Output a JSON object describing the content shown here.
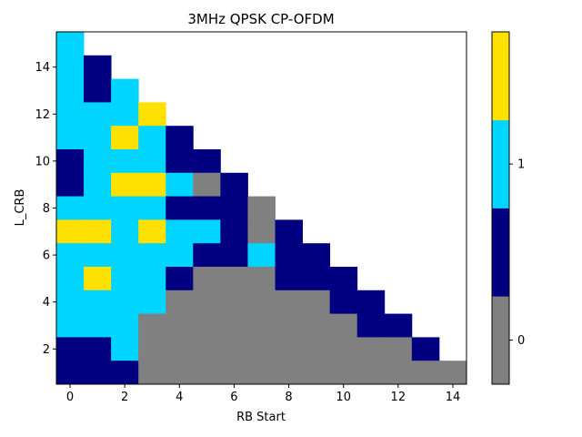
{
  "chart_data": {
    "type": "heatmap",
    "title": "3MHz QPSK CP-OFDM",
    "xlabel": "RB Start",
    "ylabel": "L_CRB",
    "x_ticks": [
      0,
      2,
      4,
      6,
      8,
      10,
      12,
      14
    ],
    "y_ticks": [
      2,
      4,
      6,
      8,
      10,
      12,
      14
    ],
    "x_range": [
      0,
      14
    ],
    "y_range": [
      1,
      15
    ],
    "colorbar": {
      "ticks": [
        {
          "value": 0,
          "label": "0"
        },
        {
          "value": 1,
          "label": "1"
        }
      ],
      "levels": [
        {
          "code": 0,
          "color": "#808080"
        },
        {
          "code": 1,
          "color": "#000080"
        },
        {
          "code": 2,
          "color": "#00d5ff"
        },
        {
          "code": 3,
          "color": "#ffe100"
        }
      ]
    },
    "rows_by_L_CRB": [
      {
        "L_CRB": 15,
        "cells": [
          2
        ]
      },
      {
        "L_CRB": 14,
        "cells": [
          2,
          1
        ]
      },
      {
        "L_CRB": 13,
        "cells": [
          2,
          1,
          2
        ]
      },
      {
        "L_CRB": 12,
        "cells": [
          2,
          2,
          2,
          3
        ]
      },
      {
        "L_CRB": 11,
        "cells": [
          2,
          2,
          3,
          2,
          1
        ]
      },
      {
        "L_CRB": 10,
        "cells": [
          1,
          2,
          2,
          2,
          1,
          1
        ]
      },
      {
        "L_CRB": 9,
        "cells": [
          1,
          2,
          3,
          3,
          2,
          0,
          1
        ]
      },
      {
        "L_CRB": 8,
        "cells": [
          2,
          2,
          2,
          2,
          1,
          1,
          1,
          0
        ]
      },
      {
        "L_CRB": 7,
        "cells": [
          3,
          3,
          2,
          3,
          2,
          2,
          1,
          0,
          1
        ]
      },
      {
        "L_CRB": 6,
        "cells": [
          2,
          2,
          2,
          2,
          2,
          1,
          1,
          2,
          1,
          1
        ]
      },
      {
        "L_CRB": 5,
        "cells": [
          2,
          3,
          2,
          2,
          1,
          0,
          0,
          0,
          1,
          1,
          1
        ]
      },
      {
        "L_CRB": 4,
        "cells": [
          2,
          2,
          2,
          2,
          0,
          0,
          0,
          0,
          0,
          0,
          1,
          1
        ]
      },
      {
        "L_CRB": 3,
        "cells": [
          2,
          2,
          2,
          0,
          0,
          0,
          0,
          0,
          0,
          0,
          0,
          1,
          1
        ]
      },
      {
        "L_CRB": 2,
        "cells": [
          1,
          1,
          2,
          0,
          0,
          0,
          0,
          0,
          0,
          0,
          0,
          0,
          0,
          1
        ]
      },
      {
        "L_CRB": 1,
        "cells": [
          1,
          1,
          1,
          0,
          0,
          0,
          0,
          0,
          0,
          0,
          0,
          0,
          0,
          0,
          0
        ]
      }
    ]
  }
}
